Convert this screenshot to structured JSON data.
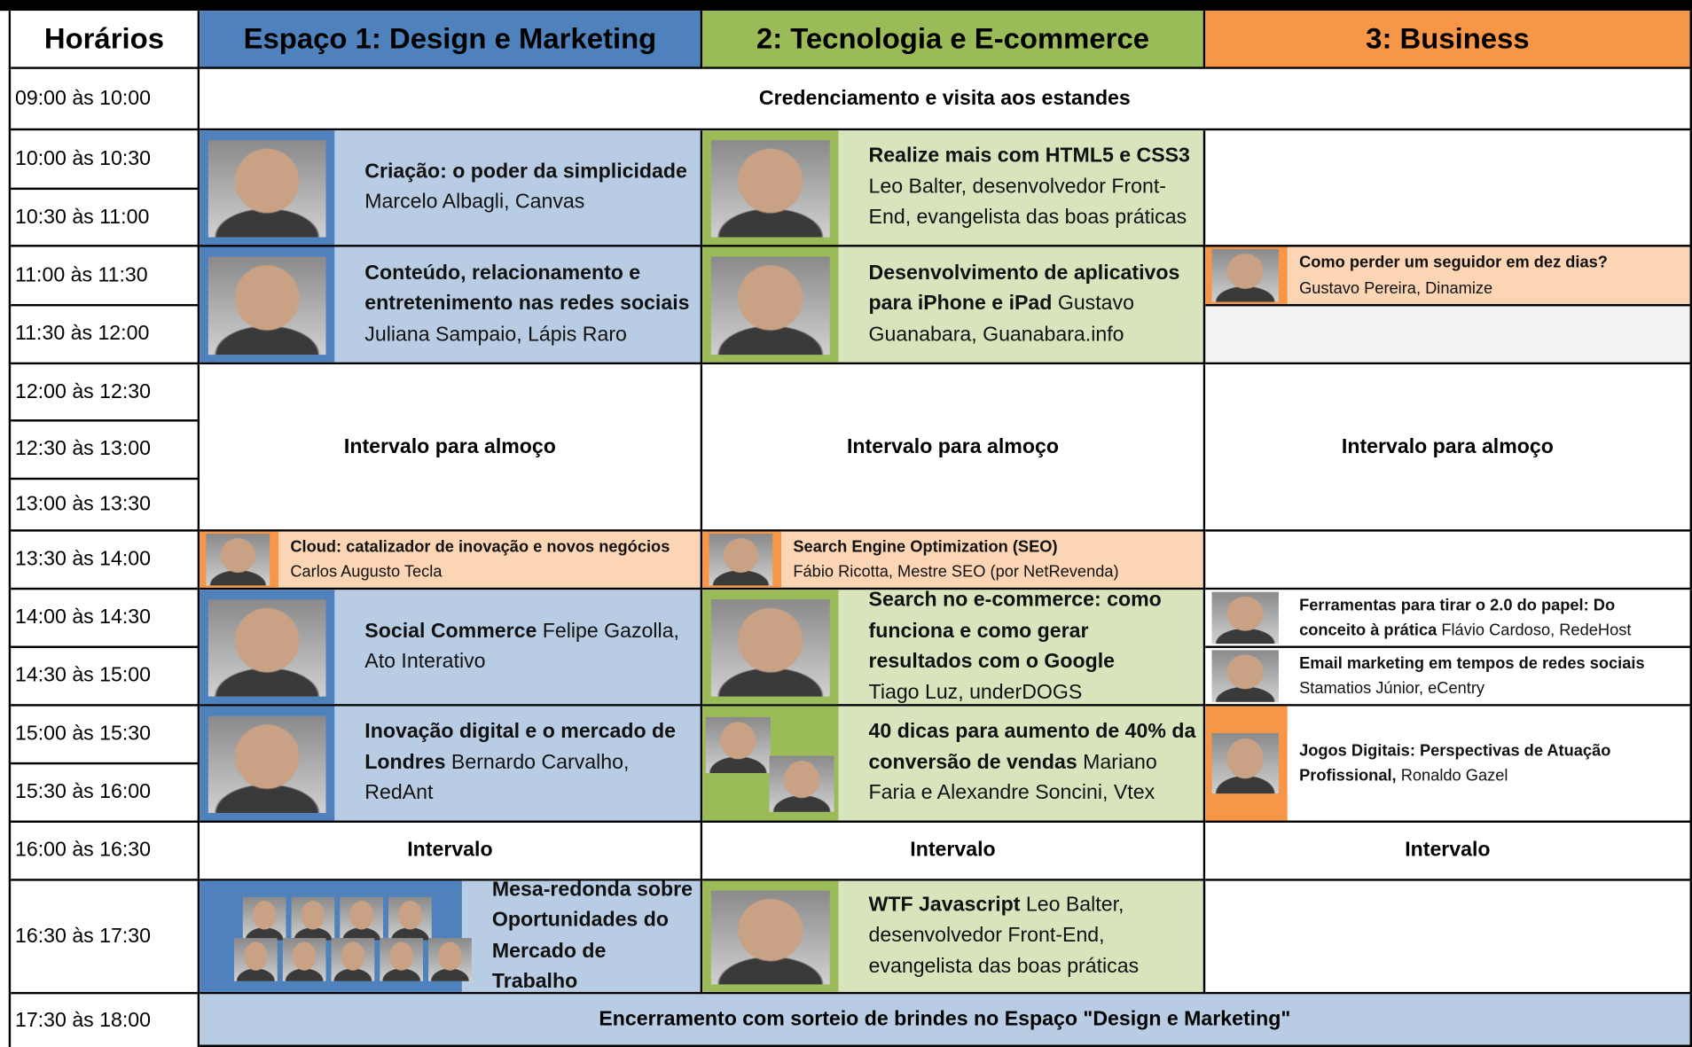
{
  "header": {
    "corner": "Horários",
    "columns": [
      "Espaço 1: Design e Marketing",
      "2: Tecnologia e E-commerce",
      "3: Business"
    ]
  },
  "times": [
    "09:00 às 10:00",
    "10:00 às 10:30",
    "10:30 às 11:00",
    "11:00 às 11:30",
    "11:30 às 12:00",
    "12:00 às 12:30",
    "12:30 às 13:00",
    "13:00 às 13:30",
    "13:30 às 14:00",
    "14:00 às 14:30",
    "14:30 às 15:00",
    "15:00 às 15:30",
    "15:30 às 16:00",
    "16:00 às 16:30",
    "16:30 às 17:30",
    "17:30 às 18:00"
  ],
  "sessions": [
    {
      "text": "Credenciamento e visita aos estandes"
    },
    {
      "title": "Criação: o poder da simplicidade",
      "speaker": "Marcelo Albagli, Canvas"
    },
    {
      "title": "Conteúdo, relacionamento e entretenimento nas redes sociais",
      "speaker": "Juliana Sampaio, Lápis Raro"
    },
    {
      "title": "Realize mais com HTML5 e CSS3",
      "speaker": "Leo Balter, desenvolvedor Front-End, evangelista das boas práticas"
    },
    {
      "title": "Desenvolvimento de aplicativos para iPhone e iPad",
      "speaker": "Gustavo Guanabara, Guanabara.info"
    },
    {
      "title": "Como perder um seguidor em dez dias?",
      "speaker": "Gustavo Pereira, Dinamize"
    },
    {
      "text": "Intervalo para almoço"
    },
    {
      "text": "Intervalo para almoço"
    },
    {
      "text": "Intervalo para almoço"
    },
    {
      "title": "Cloud: catalizador de inovação e novos negócios",
      "speaker": "Carlos Augusto Tecla"
    },
    {
      "title": "Search Engine Optimization (SEO)",
      "speaker": "Fábio Ricotta, Mestre SEO (por NetRevenda)"
    },
    {
      "title": "Social Commerce",
      "speaker": "Felipe Gazolla, Ato Interativo"
    },
    {
      "title": "Inovação digital e o mercado de Londres",
      "speaker": "Bernardo Carvalho, RedAnt"
    },
    {
      "title": "Search no e-commerce: como funciona e como gerar resultados com o Google",
      "speaker": "Tiago Luz, underDOGS"
    },
    {
      "title": "40 dicas para aumento de 40% da conversão de vendas",
      "speaker": "Mariano Faria e Alexandre Soncini, Vtex"
    },
    {
      "title": "Ferramentas para tirar o 2.0 do papel: Do conceito à prática",
      "speaker": "Flávio Cardoso, RedeHost"
    },
    {
      "title": "Email marketing em tempos de redes sociais",
      "speaker": "Stamatios Júnior, eCentry"
    },
    {
      "title": "Jogos Digitais: Perspectivas de Atuação Profissional,",
      "speaker": "Ronaldo Gazel"
    },
    {
      "text": "Intervalo"
    },
    {
      "text": "Intervalo"
    },
    {
      "text": "Intervalo"
    },
    {
      "title": "Mesa-redonda sobre Oportunidades do Mercado de Trabalho"
    },
    {
      "title": "WTF Javascript",
      "speaker": "Leo Balter, desenvolvedor Front-End, evangelista das boas práticas"
    },
    {
      "text": "Encerramento com sorteio de brindes no Espaço \"Design e Marketing\""
    }
  ]
}
